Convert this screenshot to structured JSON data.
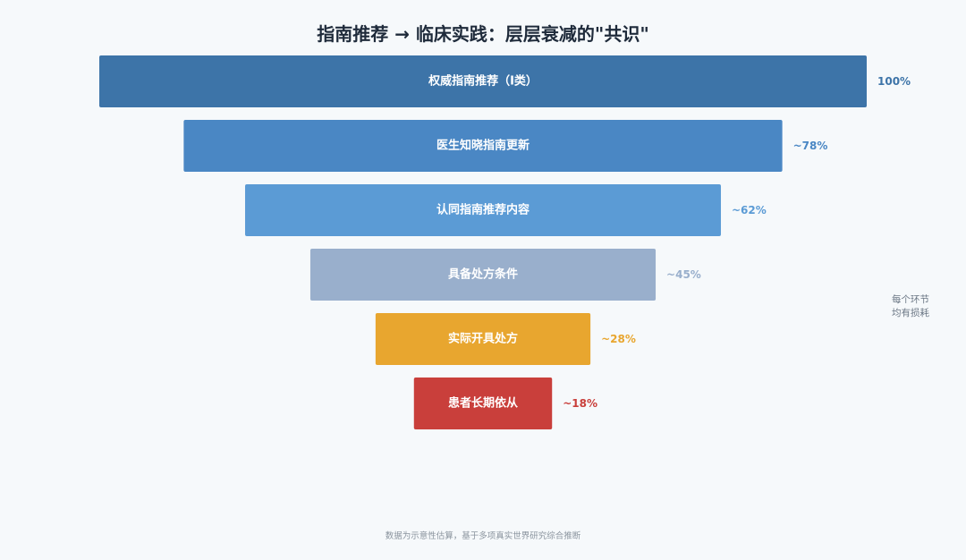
{
  "chart_data": {
    "type": "bar",
    "title": "指南推荐 → 临床实践：层层衰减的\"共识\"",
    "categories": [
      "权威指南推荐（I类）",
      "医生知晓指南更新",
      "认同指南推荐内容",
      "具备处方条件",
      "实际开具处方",
      "患者长期依从"
    ],
    "values": [
      100,
      78,
      62,
      45,
      28,
      18
    ],
    "value_labels": [
      "100%",
      "~78%",
      "~62%",
      "~45%",
      "~28%",
      "~18%"
    ],
    "colors": [
      "#3d74a8",
      "#4a87c4",
      "#5b9bd5",
      "#99afcc",
      "#e8a62f",
      "#c93f3b"
    ],
    "value_label_colors": [
      "#3d74a8",
      "#4a87c4",
      "#5b9bd5",
      "#99afcc",
      "#e8a62f",
      "#c93f3b"
    ],
    "ylim": [
      0,
      100
    ],
    "legend": "none",
    "grid": false,
    "side_note": [
      "每个环节",
      "均有损耗"
    ],
    "footnote": "数据为示意性估算，基于多项真实世界研究综合推断"
  }
}
